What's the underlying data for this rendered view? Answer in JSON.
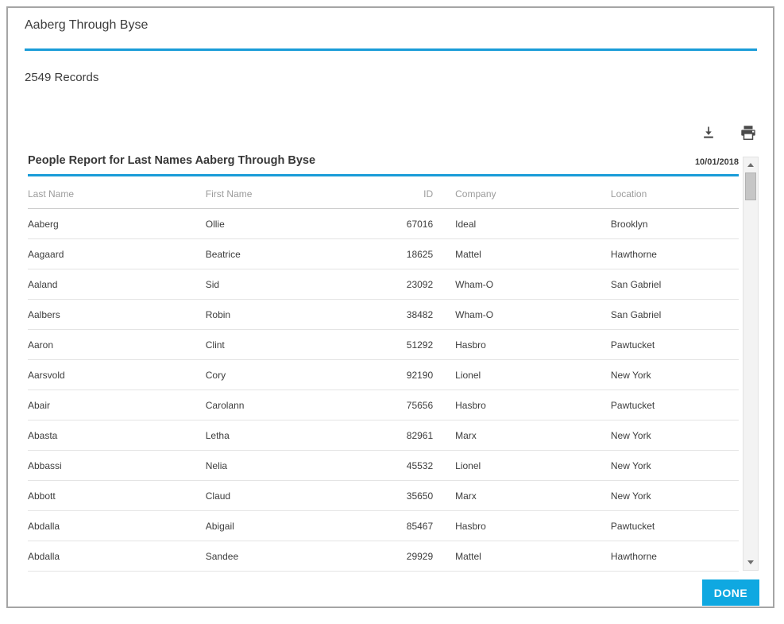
{
  "dialog": {
    "title": "Aaberg Through Byse",
    "records_label": "2549 Records",
    "done_label": "DONE"
  },
  "toolbar": {
    "icons": [
      {
        "name": "download-icon"
      },
      {
        "name": "printer-icon"
      }
    ]
  },
  "report": {
    "title": "People Report for Last Names Aaberg Through Byse",
    "date": "10/01/2018"
  },
  "table": {
    "columns": [
      "Last Name",
      "First Name",
      "ID",
      "Company",
      "Location"
    ],
    "rows": [
      [
        "Aaberg",
        "Ollie",
        "67016",
        "Ideal",
        "Brooklyn"
      ],
      [
        "Aagaard",
        "Beatrice",
        "18625",
        "Mattel",
        "Hawthorne"
      ],
      [
        "Aaland",
        "Sid",
        "23092",
        "Wham-O",
        "San Gabriel"
      ],
      [
        "Aalbers",
        "Robin",
        "38482",
        "Wham-O",
        "San Gabriel"
      ],
      [
        "Aaron",
        "Clint",
        "51292",
        "Hasbro",
        "Pawtucket"
      ],
      [
        "Aarsvold",
        "Cory",
        "92190",
        "Lionel",
        "New York"
      ],
      [
        "Abair",
        "Carolann",
        "75656",
        "Hasbro",
        "Pawtucket"
      ],
      [
        "Abasta",
        "Letha",
        "82961",
        "Marx",
        "New York"
      ],
      [
        "Abbassi",
        "Nelia",
        "45532",
        "Lionel",
        "New York"
      ],
      [
        "Abbott",
        "Claud",
        "35650",
        "Marx",
        "New York"
      ],
      [
        "Abdalla",
        "Abigail",
        "85467",
        "Hasbro",
        "Pawtucket"
      ],
      [
        "Abdalla",
        "Sandee",
        "29929",
        "Mattel",
        "Hawthorne"
      ]
    ]
  },
  "colors": {
    "accent": "#1a9cd8",
    "done_button": "#0fa8e1",
    "icon": "#4a4a4a"
  }
}
